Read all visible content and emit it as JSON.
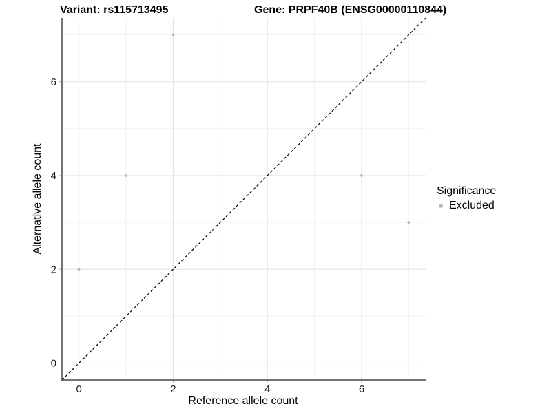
{
  "header": {
    "variant_label": "Variant: rs115713495",
    "gene_label": "Gene: PRPF40B (ENSG00000110844)"
  },
  "legend": {
    "title": "Significance",
    "items": [
      {
        "label": "Excluded",
        "color": "#b9b9b9"
      }
    ]
  },
  "chart_data": {
    "type": "scatter",
    "title": "Variant: rs115713495",
    "subtitle": "Gene: PRPF40B (ENSG00000110844)",
    "xlabel": "Reference allele count",
    "ylabel": "Alternative allele count",
    "xlim": [
      -0.36,
      7.36
    ],
    "ylim": [
      -0.36,
      7.36
    ],
    "x_ticks": [
      0,
      2,
      4,
      6
    ],
    "y_ticks": [
      0,
      2,
      4,
      6
    ],
    "x_minor_ticks": [
      1,
      3,
      5,
      7
    ],
    "y_minor_ticks": [
      1,
      3,
      5,
      7
    ],
    "grid": true,
    "legend_position": "right",
    "series": [
      {
        "name": "Excluded",
        "color": "#b9b9b9",
        "points": [
          [
            0,
            2
          ],
          [
            1,
            4
          ],
          [
            2,
            7
          ],
          [
            6,
            4
          ],
          [
            7,
            3
          ]
        ]
      }
    ],
    "reference_line": {
      "type": "identity",
      "line_style": "dashed",
      "color": "#000000"
    }
  },
  "style": {
    "point_color": "#b9b9b9",
    "grid_major_color": "#e4e4e4",
    "grid_minor_color": "#f2f2f2",
    "axis_line_color": "#454545",
    "tick_color": "#b9b9b9",
    "text_color": "#1a1a1a",
    "dashed_line_color": "#000000"
  }
}
